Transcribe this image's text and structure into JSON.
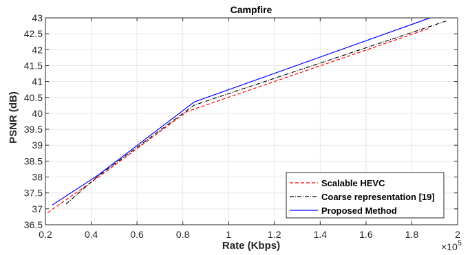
{
  "chart_data": {
    "type": "line",
    "title": "Campfire",
    "xlabel": "Rate (Kbps)",
    "ylabel": "PSNR (dB)",
    "x_multiplier_label": "×10",
    "x_multiplier_exp": "5",
    "xlim": [
      0.2,
      2.0
    ],
    "ylim": [
      36.5,
      43.0
    ],
    "xticks": [
      0.2,
      0.4,
      0.6,
      0.8,
      1.0,
      1.2,
      1.4,
      1.6,
      1.8,
      2.0
    ],
    "xtick_labels": [
      "0.2",
      "0.4",
      "0.6",
      "0.8",
      "1",
      "1.2",
      "1.4",
      "1.6",
      "1.8",
      "2"
    ],
    "yticks": [
      36.5,
      37,
      37.5,
      38,
      38.5,
      39,
      39.5,
      40,
      40.5,
      41,
      41.5,
      42,
      42.5,
      43
    ],
    "ytick_labels": [
      "36.5",
      "37",
      "37.5",
      "38",
      "38.5",
      "39",
      "39.5",
      "40",
      "40.5",
      "41",
      "41.5",
      "42",
      "42.5",
      "43"
    ],
    "grid": true,
    "legend_position": "bottom-right",
    "series": [
      {
        "name": "Scalable HEVC",
        "color": "#ff0000",
        "style": "dashed",
        "x": [
          0.21,
          0.43,
          0.82,
          1.88
        ],
        "y": [
          36.88,
          37.99,
          40.06,
          42.68
        ]
      },
      {
        "name": "Coarse representation [19]",
        "color": "#000000",
        "style": "dashdot",
        "x": [
          0.29,
          0.43,
          0.85,
          1.95
        ],
        "y": [
          37.15,
          38.03,
          40.26,
          42.9
        ]
      },
      {
        "name": "Proposed Method",
        "color": "#0000ff",
        "style": "solid",
        "x": [
          0.23,
          0.43,
          0.85,
          1.88
        ],
        "y": [
          37.12,
          38.06,
          40.36,
          43.0
        ]
      }
    ]
  }
}
